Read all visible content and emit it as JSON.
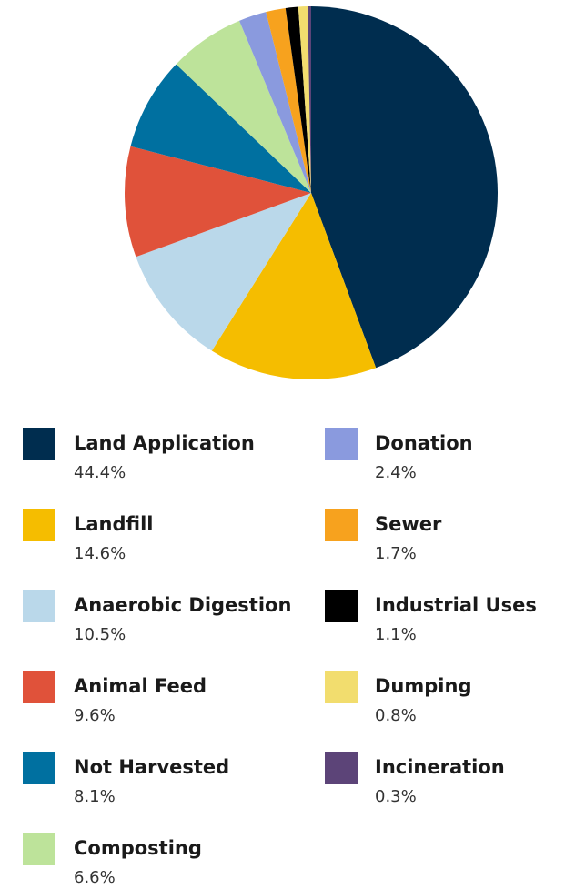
{
  "chart_data": {
    "type": "pie",
    "categories": [
      "Land Application",
      "Landfill",
      "Anaerobic Digestion",
      "Animal Feed",
      "Not Harvested",
      "Composting",
      "Donation",
      "Sewer",
      "Industrial Uses",
      "Dumping",
      "Incineration"
    ],
    "values": [
      44.4,
      14.6,
      10.5,
      9.6,
      8.1,
      6.6,
      2.4,
      1.7,
      1.1,
      0.8,
      0.3
    ],
    "value_labels": [
      "44.4%",
      "14.6%",
      "10.5%",
      "9.6%",
      "8.1%",
      "6.6%",
      "2.4%",
      "1.7%",
      "1.1%",
      "0.8%",
      "0.3%"
    ],
    "colors": [
      "#002d4f",
      "#f5bd00",
      "#bad8ea",
      "#e0523a",
      "#0070a0",
      "#bde39a",
      "#8a9ade",
      "#f7a21e",
      "#000000",
      "#f2dd6e",
      "#5c4478"
    ]
  }
}
